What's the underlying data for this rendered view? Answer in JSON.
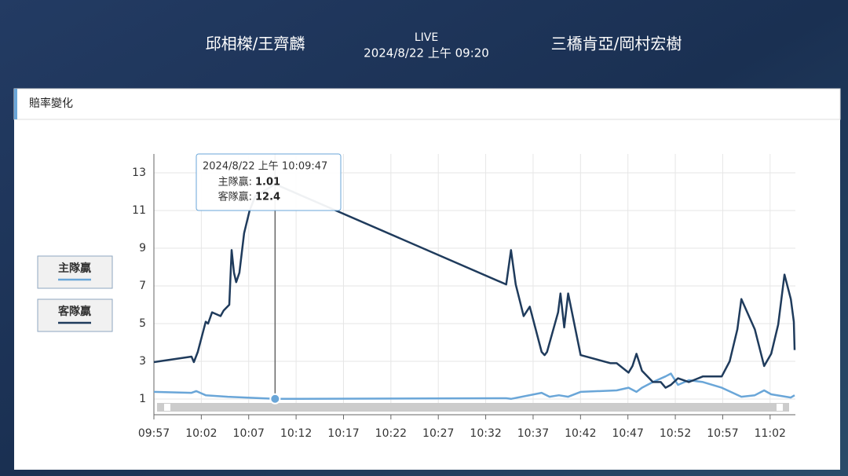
{
  "header": {
    "home": "邱相榤/王齊麟",
    "status": "LIVE",
    "time": "2024/8/22 上午 09:20",
    "away": "三橋肯亞/岡村宏樹"
  },
  "section_title": "賠率變化",
  "tooltip": {
    "time": "2024/8/22 上午 10:09:47",
    "items": [
      {
        "label": "主隊贏:",
        "value": 1.01
      },
      {
        "label": "客隊贏:",
        "value": 12.4
      }
    ]
  },
  "chart_data": {
    "type": "line",
    "xlim": [
      "09:57:00",
      "11:04:40"
    ],
    "xticks": [
      "09:57",
      "10:02",
      "10:07",
      "10:12",
      "10:17",
      "10:22",
      "10:27",
      "10:32",
      "10:37",
      "10:42",
      "10:47",
      "10:52",
      "10:57",
      "11:02"
    ],
    "ylim": [
      0.5,
      14
    ],
    "yticks": [
      1,
      3,
      5,
      7,
      9,
      11,
      13
    ],
    "grid": true,
    "legend": "left",
    "series": [
      {
        "name": "主隊贏",
        "color": "#6aa6d8",
        "x": [
          "09:57:00",
          "10:00:58",
          "10:01:28",
          "10:02:28",
          "10:04:47",
          "10:09:47",
          "10:34:10",
          "10:34:40",
          "10:37:54",
          "10:38:44",
          "10:39:43",
          "10:40:42",
          "10:42:01",
          "10:45:49",
          "10:47:04",
          "10:47:54",
          "10:48:29",
          "10:49:38",
          "10:50:58",
          "10:51:32",
          "10:52:17",
          "10:53:26",
          "10:54:55",
          "10:56:54",
          "10:58:58",
          "11:00:23",
          "11:01:22",
          "11:02:07",
          "11:04:11",
          "11:04:35"
        ],
        "values": [
          1.38,
          1.33,
          1.42,
          1.2,
          1.12,
          1.01,
          1.04,
          1.01,
          1.33,
          1.12,
          1.2,
          1.12,
          1.38,
          1.46,
          1.6,
          1.38,
          1.6,
          1.9,
          2.2,
          2.35,
          1.75,
          2.0,
          1.9,
          1.6,
          1.12,
          1.2,
          1.46,
          1.25,
          1.08,
          1.2
        ]
      },
      {
        "name": "客隊贏",
        "color": "#1f3b5c",
        "x": [
          "09:57:00",
          "10:00:58",
          "10:01:13",
          "10:01:38",
          "10:02:28",
          "10:02:43",
          "10:03:08",
          "10:04:02",
          "10:04:22",
          "10:04:57",
          "10:05:12",
          "10:05:27",
          "10:05:41",
          "10:06:01",
          "10:06:31",
          "10:07:06",
          "10:07:41",
          "10:09:47",
          "10:34:10",
          "10:34:40",
          "10:35:10",
          "10:36:00",
          "10:36:39",
          "10:37:54",
          "10:38:13",
          "10:38:28",
          "10:39:38",
          "10:39:53",
          "10:40:17",
          "10:40:42",
          "10:42:01",
          "10:45:10",
          "10:45:49",
          "10:47:04",
          "10:47:29",
          "10:47:54",
          "10:48:29",
          "10:49:38",
          "10:50:28",
          "10:50:58",
          "10:51:32",
          "10:52:17",
          "10:53:26",
          "10:54:55",
          "10:56:54",
          "10:57:44",
          "10:58:33",
          "10:58:58",
          "11:00:23",
          "11:01:22",
          "11:02:07",
          "11:02:51",
          "11:03:31",
          "11:04:11",
          "11:04:30",
          "11:04:35"
        ],
        "values": [
          2.96,
          3.25,
          2.96,
          3.5,
          5.1,
          5.0,
          5.6,
          5.4,
          5.7,
          6.0,
          8.9,
          7.7,
          7.2,
          7.7,
          9.8,
          11.0,
          11.75,
          12.4,
          7.08,
          8.9,
          7.08,
          5.4,
          5.9,
          3.5,
          3.33,
          3.5,
          5.6,
          6.6,
          4.8,
          6.6,
          3.33,
          2.9,
          2.9,
          2.4,
          2.75,
          3.4,
          2.5,
          1.9,
          1.9,
          1.6,
          1.75,
          2.1,
          1.9,
          2.2,
          2.2,
          3.0,
          4.7,
          6.3,
          4.7,
          2.75,
          3.4,
          4.95,
          7.6,
          6.3,
          5.1,
          3.6
        ]
      }
    ]
  }
}
